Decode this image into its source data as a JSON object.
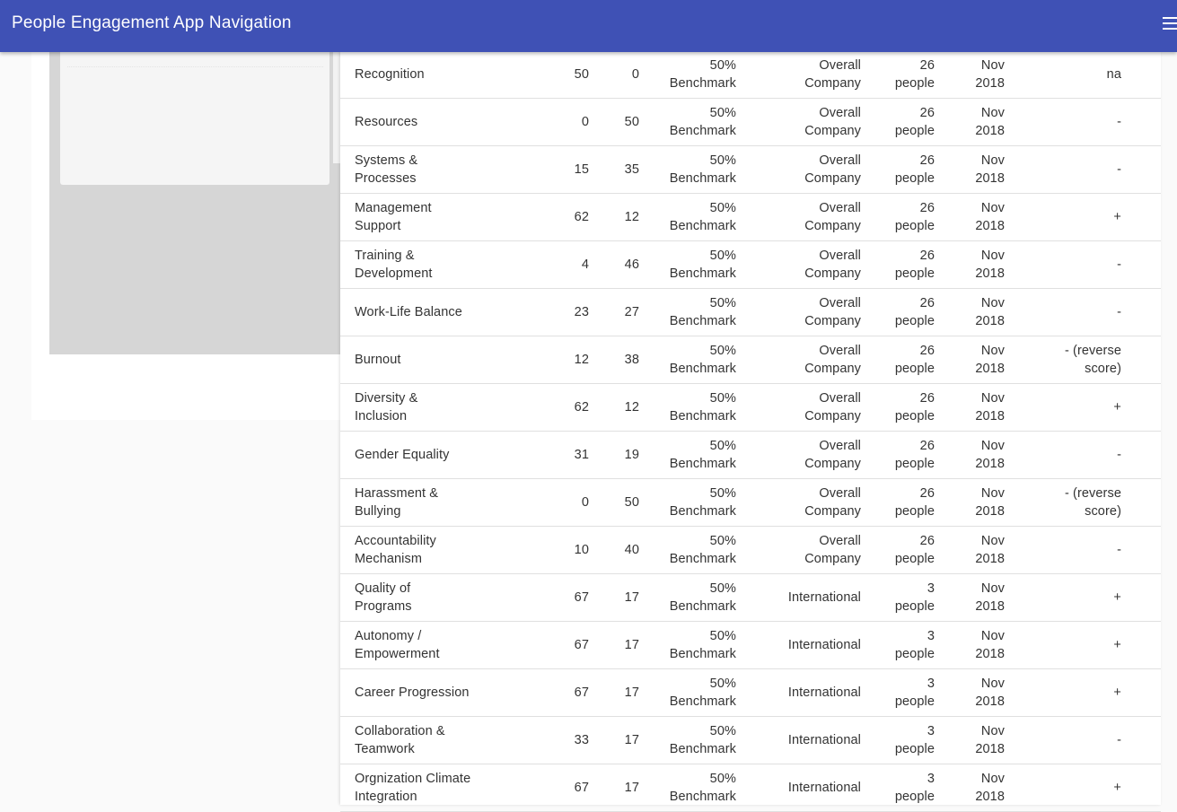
{
  "app_bar": {
    "title": "People Engagement App Navigation",
    "menu_icon": "hamburger-menu-icon"
  },
  "table": {
    "rows": [
      {
        "name": "Recognition",
        "v1": "50",
        "v2": "0",
        "benchmark": "50% Benchmark",
        "group": "Overall Company",
        "size": "26 people",
        "date": "Nov 2018",
        "trend": "na"
      },
      {
        "name": "Resources",
        "v1": "0",
        "v2": "50",
        "benchmark": "50% Benchmark",
        "group": "Overall Company",
        "size": "26 people",
        "date": "Nov 2018",
        "trend": "-"
      },
      {
        "name": "Systems & Processes",
        "v1": "15",
        "v2": "35",
        "benchmark": "50% Benchmark",
        "group": "Overall Company",
        "size": "26 people",
        "date": "Nov 2018",
        "trend": "-"
      },
      {
        "name": "Management Support",
        "v1": "62",
        "v2": "12",
        "benchmark": "50% Benchmark",
        "group": "Overall Company",
        "size": "26 people",
        "date": "Nov 2018",
        "trend": "+"
      },
      {
        "name": "Training & Development",
        "v1": "4",
        "v2": "46",
        "benchmark": "50% Benchmark",
        "group": "Overall Company",
        "size": "26 people",
        "date": "Nov 2018",
        "trend": "-"
      },
      {
        "name": "Work-Life Balance",
        "v1": "23",
        "v2": "27",
        "benchmark": "50% Benchmark",
        "group": "Overall Company",
        "size": "26 people",
        "date": "Nov 2018",
        "trend": "-"
      },
      {
        "name": "Burnout",
        "v1": "12",
        "v2": "38",
        "benchmark": "50% Benchmark",
        "group": "Overall Company",
        "size": "26 people",
        "date": "Nov 2018",
        "trend": "- (reverse score)"
      },
      {
        "name": "Diversity & Inclusion",
        "v1": "62",
        "v2": "12",
        "benchmark": "50% Benchmark",
        "group": "Overall Company",
        "size": "26 people",
        "date": "Nov 2018",
        "trend": "+"
      },
      {
        "name": "Gender Equality",
        "v1": "31",
        "v2": "19",
        "benchmark": "50% Benchmark",
        "group": "Overall Company",
        "size": "26 people",
        "date": "Nov 2018",
        "trend": "-"
      },
      {
        "name": "Harassment & Bullying",
        "v1": "0",
        "v2": "50",
        "benchmark": "50% Benchmark",
        "group": "Overall Company",
        "size": "26 people",
        "date": "Nov 2018",
        "trend": "- (reverse score)"
      },
      {
        "name": "Accountability Mechanism",
        "v1": "10",
        "v2": "40",
        "benchmark": "50% Benchmark",
        "group": "Overall Company",
        "size": "26 people",
        "date": "Nov 2018",
        "trend": "-"
      },
      {
        "name": "Quality of Programs",
        "v1": "67",
        "v2": "17",
        "benchmark": "50% Benchmark",
        "group": "International",
        "size": "3 people",
        "date": "Nov 2018",
        "trend": "+"
      },
      {
        "name": "Autonomy / Empowerment",
        "v1": "67",
        "v2": "17",
        "benchmark": "50% Benchmark",
        "group": "International",
        "size": "3 people",
        "date": "Nov 2018",
        "trend": "+"
      },
      {
        "name": "Career Progression",
        "v1": "67",
        "v2": "17",
        "benchmark": "50% Benchmark",
        "group": "International",
        "size": "3 people",
        "date": "Nov 2018",
        "trend": "+"
      },
      {
        "name": "Collaboration & Teamwork",
        "v1": "33",
        "v2": "17",
        "benchmark": "50% Benchmark",
        "group": "International",
        "size": "3 people",
        "date": "Nov 2018",
        "trend": "-"
      },
      {
        "name": "Orgnization Climate Integration",
        "v1": "67",
        "v2": "17",
        "benchmark": "50% Benchmark",
        "group": "International",
        "size": "3 people",
        "date": "Nov 2018",
        "trend": "+"
      }
    ]
  }
}
